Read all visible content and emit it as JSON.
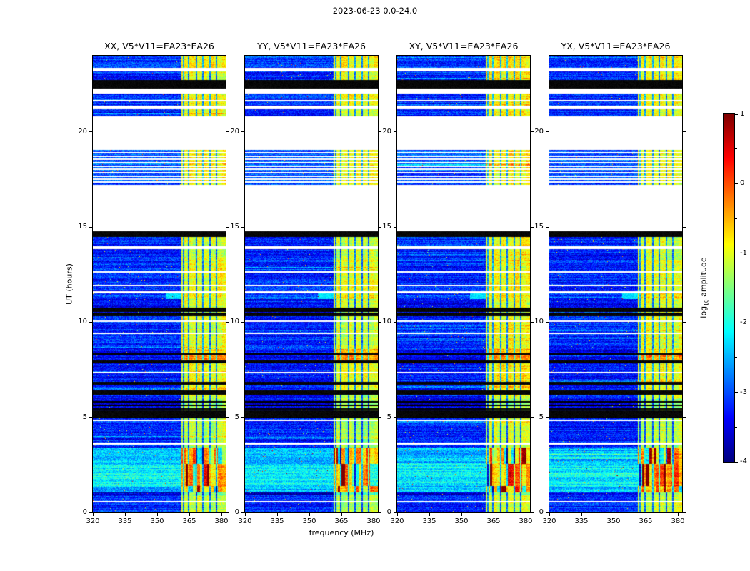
{
  "figure": {
    "title": "2023-06-23 0.0-24.0",
    "xlabel": "frequency (MHz)",
    "ylabel": "UT (hours)",
    "colorbar_label_prefix": "log",
    "colorbar_label_sub": "10",
    "colorbar_label_suffix": " amplitude"
  },
  "chart_data": {
    "type": "heatmap",
    "title": "2023-06-23 0.0-24.0",
    "xlabel": "frequency (MHz)",
    "ylabel": "UT (hours)",
    "xlim": [
      320,
      382
    ],
    "ylim": [
      0,
      24
    ],
    "xticks": [
      320,
      335,
      350,
      365,
      380
    ],
    "yticks": [
      0,
      5,
      10,
      15,
      20
    ],
    "colormap": "jet",
    "colorbar": {
      "label": "log10 amplitude",
      "range": [
        -4,
        1
      ],
      "ticks": [
        1,
        0,
        -1,
        -2,
        -3,
        -4
      ],
      "minor_ticks": [
        0.5,
        -0.5,
        -1.5,
        -2.5,
        -3.5
      ]
    },
    "panels": [
      {
        "title": "XX, V5*V11=EA23*EA26",
        "pol": "XX",
        "seed": 101,
        "band_gain": 1.0
      },
      {
        "title": "YY, V5*V11=EA23*EA26",
        "pol": "YY",
        "seed": 202,
        "band_gain": 1.04
      },
      {
        "title": "XY, V5*V11=EA23*EA26",
        "pol": "XY",
        "seed": 303,
        "band_gain": 0.9
      },
      {
        "title": "YX, V5*V11=EA23*EA26",
        "pol": "YX",
        "seed": 404,
        "band_gain": 1.0
      }
    ],
    "band": {
      "start_mhz": 361.5,
      "stripe_mhz": [
        362.2,
        364.8,
        368.2,
        371.3,
        374.6,
        377.8
      ]
    },
    "segments": [
      {
        "t0": 0.0,
        "t1": 0.9,
        "k": "d",
        "base": -3.2,
        "band": -1.2
      },
      {
        "t0": 0.9,
        "t1": 1.05,
        "k": "d",
        "base": -3.6,
        "band": -1.5
      },
      {
        "t0": 1.05,
        "t1": 1.4,
        "k": "d",
        "base": -2.45,
        "band": -0.85,
        "blob": 1
      },
      {
        "t0": 1.4,
        "t1": 2.55,
        "k": "d",
        "base": -2.15,
        "band": -0.55,
        "blob": 1
      },
      {
        "t0": 2.55,
        "t1": 3.4,
        "k": "d",
        "base": -2.45,
        "band": -0.85,
        "blob": 1
      },
      {
        "t0": 3.4,
        "t1": 3.58,
        "k": "d",
        "base": -3.2,
        "band": -1.3
      },
      {
        "t0": 3.58,
        "t1": 3.66,
        "k": "w"
      },
      {
        "t0": 3.66,
        "t1": 4.95,
        "k": "d",
        "base": -3.25,
        "band": -1.25
      },
      {
        "t0": 4.95,
        "t1": 5.38,
        "k": "b"
      },
      {
        "t0": 5.38,
        "t1": 5.95,
        "k": "d",
        "base": -3.55,
        "band": -1.4
      },
      {
        "t0": 5.95,
        "t1": 6.2,
        "k": "d",
        "base": -3.3,
        "band": -1.1
      },
      {
        "t0": 6.2,
        "t1": 6.4,
        "k": "b"
      },
      {
        "t0": 6.4,
        "t1": 6.7,
        "k": "d",
        "base": -3.3,
        "band": -1.0
      },
      {
        "t0": 6.7,
        "t1": 6.88,
        "k": "b"
      },
      {
        "t0": 6.88,
        "t1": 7.82,
        "k": "d",
        "base": -3.3,
        "band": -0.95
      },
      {
        "t0": 7.82,
        "t1": 8.0,
        "k": "b"
      },
      {
        "t0": 8.0,
        "t1": 8.3,
        "k": "d",
        "base": -3.5,
        "band": -0.4
      },
      {
        "t0": 8.3,
        "t1": 8.58,
        "k": "d",
        "base": -3.4,
        "band": -0.6
      },
      {
        "t0": 8.58,
        "t1": 10.32,
        "k": "d",
        "base": -3.2,
        "band": -1.05
      },
      {
        "t0": 10.32,
        "t1": 10.5,
        "k": "b"
      },
      {
        "t0": 10.5,
        "t1": 10.55,
        "k": "d",
        "base": -3.2,
        "band": -1.1
      },
      {
        "t0": 10.55,
        "t1": 10.75,
        "k": "b"
      },
      {
        "t0": 10.75,
        "t1": 11.2,
        "k": "d",
        "base": -3.45,
        "band": -1.15
      },
      {
        "t0": 11.2,
        "t1": 11.5,
        "k": "d",
        "base": -3.1,
        "band": -0.85,
        "glow": 1
      },
      {
        "t0": 11.5,
        "t1": 11.62,
        "k": "w"
      },
      {
        "t0": 11.62,
        "t1": 13.26,
        "k": "d",
        "base": -3.2,
        "band": -0.95
      },
      {
        "t0": 13.26,
        "t1": 13.82,
        "k": "d",
        "base": -3.25,
        "band": -1.1
      },
      {
        "t0": 13.82,
        "t1": 14.0,
        "k": "w"
      },
      {
        "t0": 14.0,
        "t1": 14.48,
        "k": "d",
        "base": -3.2,
        "band": -1.1
      },
      {
        "t0": 14.48,
        "t1": 14.76,
        "k": "b"
      },
      {
        "t0": 14.76,
        "t1": 17.2,
        "k": "w"
      },
      {
        "t0": 17.2,
        "t1": 19.05,
        "k": "d",
        "base": -2.95,
        "band": -0.9
      },
      {
        "t0": 19.05,
        "t1": 20.82,
        "k": "w"
      },
      {
        "t0": 20.82,
        "t1": 21.2,
        "k": "d",
        "base": -3.2,
        "band": -0.95
      },
      {
        "t0": 21.2,
        "t1": 21.38,
        "k": "w"
      },
      {
        "t0": 21.38,
        "t1": 22.0,
        "k": "d",
        "base": -3.2,
        "band": -0.95
      },
      {
        "t0": 22.0,
        "t1": 22.26,
        "k": "w"
      },
      {
        "t0": 22.26,
        "t1": 22.74,
        "k": "b"
      },
      {
        "t0": 22.74,
        "t1": 23.18,
        "k": "d",
        "base": -3.2,
        "band": -0.95
      },
      {
        "t0": 23.18,
        "t1": 23.38,
        "k": "w"
      },
      {
        "t0": 23.38,
        "t1": 24.01,
        "k": "d",
        "base": -3.15,
        "band": -0.9
      }
    ],
    "white_lines": [
      0.55,
      4.82,
      7.35,
      9.4,
      10.05,
      11.92,
      12.62,
      17.35,
      17.52,
      17.68,
      17.85,
      18.02,
      18.2,
      18.38,
      18.55,
      18.72,
      18.9,
      21.62
    ],
    "black_lines": [
      5.45,
      5.62,
      5.8,
      8.33
    ]
  }
}
